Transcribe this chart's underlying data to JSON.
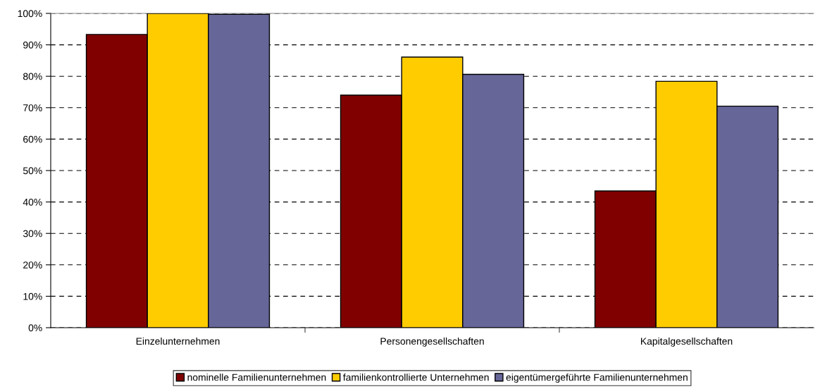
{
  "chart_data": {
    "type": "bar",
    "categories": [
      "Einzelunternehmen",
      "Personengesellschaften",
      "Kapitalgesellschaften"
    ],
    "series": [
      {
        "name": "nominelle Familienunternehmen",
        "color": "#800000",
        "values": [
          93.3,
          74.0,
          43.5
        ]
      },
      {
        "name": "familienkontrollierte Unternehmen",
        "color": "#ffcc00",
        "values": [
          100,
          86.1,
          78.4
        ]
      },
      {
        "name": "eigentümergeführte Familienunternehmen",
        "color": "#666699",
        "values": [
          99.7,
          80.6,
          70.5
        ]
      }
    ],
    "ylim": [
      0,
      100
    ],
    "yticks": [
      {
        "value": 0,
        "label": "0%"
      },
      {
        "value": 10,
        "label": "10%"
      },
      {
        "value": 20,
        "label": "20%"
      },
      {
        "value": 30,
        "label": "30%"
      },
      {
        "value": 40,
        "label": "40%"
      },
      {
        "value": 50,
        "label": "50%"
      },
      {
        "value": 60,
        "label": "60%"
      },
      {
        "value": 70,
        "label": "70%"
      },
      {
        "value": 80,
        "label": "80%"
      },
      {
        "value": 90,
        "label": "90%"
      },
      {
        "value": 100,
        "label": "100%"
      }
    ],
    "grid": "y",
    "legend": "bottom"
  }
}
